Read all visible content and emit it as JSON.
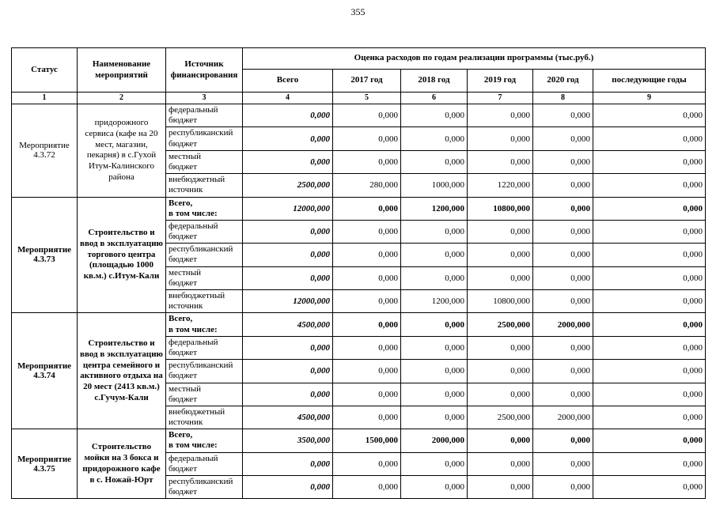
{
  "page": {
    "number": "355"
  },
  "table": {
    "headers": {
      "status": "Статус",
      "name": "Наименование мероприятий",
      "source": "Источник финансирования",
      "group": "Оценка расходов по годам реализации  программы (тыс.руб.)",
      "cols": [
        "Всего",
        "2017 год",
        "2018 год",
        "2019 год",
        "2020 год",
        "последующие годы"
      ],
      "nums": [
        "1",
        "2",
        "3",
        "4",
        "5",
        "6",
        "7",
        "8",
        "9"
      ]
    },
    "groups": [
      {
        "status": "Мероприятие 4.3.72",
        "name": "придорожного сервиса (кафе на 20 мест, магазин, пекарня) в с.Гухой Итум-Калинского района",
        "rows": [
          {
            "source": "федеральный\nбюджет",
            "bold": false,
            "values": [
              "0,000",
              "0,000",
              "0,000",
              "0,000",
              "0,000",
              "0,000"
            ]
          },
          {
            "source": "республиканский\nбюджет",
            "bold": false,
            "values": [
              "0,000",
              "0,000",
              "0,000",
              "0,000",
              "0,000",
              "0,000"
            ]
          },
          {
            "source": "местный\nбюджет",
            "bold": false,
            "values": [
              "0,000",
              "0,000",
              "0,000",
              "0,000",
              "0,000",
              "0,000"
            ]
          },
          {
            "source": "внебюджетный\nисточник",
            "bold": false,
            "values": [
              "2500,000",
              "280,000",
              "1000,000",
              "1220,000",
              "0,000",
              "0,000"
            ]
          }
        ]
      },
      {
        "status": "Мероприятие 4.3.73",
        "name": "Строительство и ввод в эксплуатацию торгового центра (площадью 1000 кв.м.) с.Итум-Кали",
        "rows": [
          {
            "source": "Всего,\nв том числе:",
            "bold": true,
            "values": [
              "12000,000",
              "0,000",
              "1200,000",
              "10800,000",
              "0,000",
              "0,000"
            ]
          },
          {
            "source": "федеральный\nбюджет",
            "bold": false,
            "values": [
              "0,000",
              "0,000",
              "0,000",
              "0,000",
              "0,000",
              "0,000"
            ]
          },
          {
            "source": "республиканский\nбюджет",
            "bold": false,
            "values": [
              "0,000",
              "0,000",
              "0,000",
              "0,000",
              "0,000",
              "0,000"
            ]
          },
          {
            "source": "местный\nбюджет",
            "bold": false,
            "values": [
              "0,000",
              "0,000",
              "0,000",
              "0,000",
              "0,000",
              "0,000"
            ]
          },
          {
            "source": "внебюджетный\nисточник",
            "bold": false,
            "values": [
              "12000,000",
              "0,000",
              "1200,000",
              "10800,000",
              "0,000",
              "0,000"
            ]
          }
        ]
      },
      {
        "status": "Мероприятие 4.3.74",
        "name": "Строительство и ввод в эксплуатацию центра семейного и активного отдыха на 20 мест (2413 кв.м.) с.Гучум-Кали",
        "rows": [
          {
            "source": "Всего,\nв том числе:",
            "bold": true,
            "values": [
              "4500,000",
              "0,000",
              "0,000",
              "2500,000",
              "2000,000",
              "0,000"
            ]
          },
          {
            "source": "федеральный\nбюджет",
            "bold": false,
            "values": [
              "0,000",
              "0,000",
              "0,000",
              "0,000",
              "0,000",
              "0,000"
            ]
          },
          {
            "source": "республиканский\nбюджет",
            "bold": false,
            "values": [
              "0,000",
              "0,000",
              "0,000",
              "0,000",
              "0,000",
              "0,000"
            ]
          },
          {
            "source": "местный\nбюджет",
            "bold": false,
            "values": [
              "0,000",
              "0,000",
              "0,000",
              "0,000",
              "0,000",
              "0,000"
            ]
          },
          {
            "source": "внебюджетный\nисточник",
            "bold": false,
            "values": [
              "4500,000",
              "0,000",
              "0,000",
              "2500,000",
              "2000,000",
              "0,000"
            ]
          }
        ]
      },
      {
        "status": "Мероприятие 4.3.75",
        "name": "Строительство мойки на 3 бокса и придорожного кафе в с. Ножай-Юрт",
        "rows": [
          {
            "source": "Всего,\nв том числе:",
            "bold": true,
            "values": [
              "3500,000",
              "1500,000",
              "2000,000",
              "0,000",
              "0,000",
              "0,000"
            ]
          },
          {
            "source": "федеральный\nбюджет",
            "bold": false,
            "values": [
              "0,000",
              "0,000",
              "0,000",
              "0,000",
              "0,000",
              "0,000"
            ]
          },
          {
            "source": "республиканский\nбюджет",
            "bold": false,
            "values": [
              "0,000",
              "0,000",
              "0,000",
              "0,000",
              "0,000",
              "0,000"
            ]
          }
        ]
      }
    ]
  }
}
